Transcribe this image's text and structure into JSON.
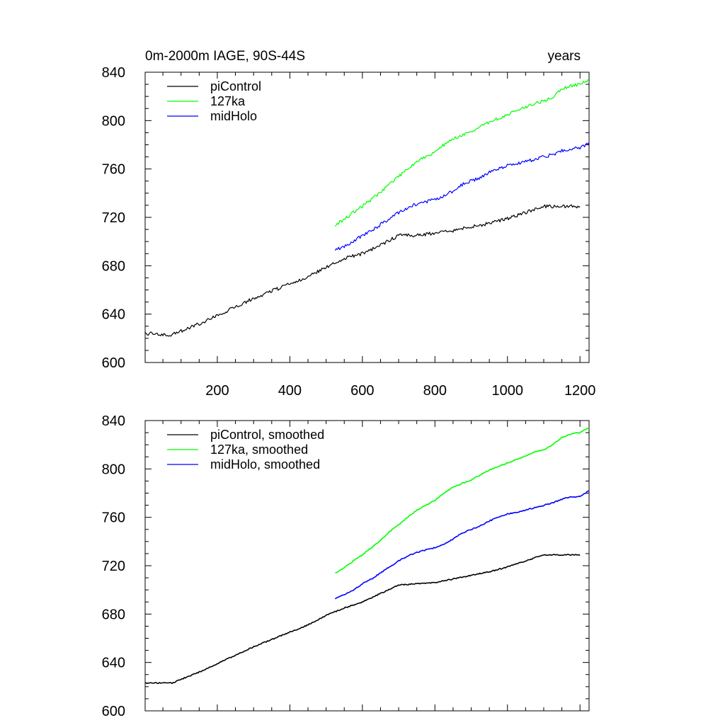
{
  "chart_data": [
    {
      "type": "line",
      "title": "0m-2000m IAGE, 90S-44S",
      "title_right": "years",
      "xlim": [
        1,
        1225
      ],
      "ylim": [
        600,
        840
      ],
      "yticks": [
        "600",
        "640",
        "680",
        "720",
        "760",
        "800",
        "840"
      ],
      "xticks": [
        "200",
        "400",
        "600",
        "800",
        "1000",
        "1200"
      ],
      "legend_position": "top-left",
      "series": [
        {
          "name": "piControl",
          "color": "#000000",
          "x": [
            1,
            25,
            50,
            75,
            100,
            150,
            200,
            250,
            300,
            350,
            400,
            450,
            500,
            525,
            550,
            600,
            650,
            700,
            750,
            800,
            850,
            900,
            950,
            1000,
            1050,
            1100,
            1150,
            1200
          ],
          "y": [
            624,
            624,
            623,
            623,
            626,
            632,
            639,
            646,
            653,
            659,
            665,
            671,
            679,
            682,
            686,
            690,
            697,
            705,
            705,
            707,
            709,
            712,
            715,
            719,
            724,
            729,
            729,
            729
          ]
        },
        {
          "name": "127ka",
          "color": "#00ff00",
          "x": [
            525,
            550,
            575,
            600,
            625,
            650,
            675,
            700,
            725,
            750,
            775,
            800,
            825,
            850,
            875,
            900,
            925,
            950,
            975,
            1000,
            1025,
            1050,
            1075,
            1100,
            1125,
            1150,
            1175,
            1200,
            1225
          ],
          "y": [
            714,
            718,
            724,
            729,
            735,
            741,
            748,
            754,
            760,
            766,
            770,
            774,
            780,
            785,
            788,
            791,
            795,
            799,
            802,
            805,
            808,
            811,
            814,
            816,
            820,
            826,
            829,
            830,
            834
          ]
        },
        {
          "name": "midHolo",
          "color": "#0000ff",
          "x": [
            525,
            550,
            575,
            600,
            625,
            650,
            675,
            700,
            725,
            750,
            775,
            800,
            825,
            850,
            875,
            900,
            925,
            950,
            975,
            1000,
            1025,
            1050,
            1075,
            1100,
            1125,
            1150,
            1175,
            1200,
            1225
          ],
          "y": [
            693,
            696,
            700,
            705,
            709,
            714,
            719,
            724,
            728,
            731,
            733,
            735,
            738,
            742,
            747,
            750,
            753,
            757,
            760,
            763,
            764,
            766,
            768,
            770,
            772,
            775,
            777,
            777,
            782
          ]
        }
      ]
    },
    {
      "type": "line",
      "title": "",
      "xlim": [
        1,
        1225
      ],
      "ylim": [
        600,
        840
      ],
      "yticks": [
        "600",
        "640",
        "680",
        "720",
        "760",
        "800",
        "840"
      ],
      "xticks": [],
      "legend_position": "top-left",
      "series": [
        {
          "name": "piControl, smoothed",
          "color": "#000000",
          "x": [
            1,
            25,
            50,
            75,
            100,
            150,
            200,
            250,
            300,
            350,
            400,
            450,
            500,
            525,
            550,
            600,
            650,
            700,
            750,
            800,
            850,
            900,
            950,
            1000,
            1050,
            1100,
            1150,
            1200
          ],
          "y": [
            623,
            623,
            623,
            623,
            626,
            632,
            639,
            646,
            653,
            659,
            665,
            671,
            679,
            682,
            685,
            690,
            697,
            704,
            705,
            706,
            709,
            712,
            715,
            719,
            724,
            729,
            729,
            729
          ]
        },
        {
          "name": "127ka, smoothed",
          "color": "#00ff00",
          "x": [
            525,
            550,
            575,
            600,
            625,
            650,
            675,
            700,
            725,
            750,
            775,
            800,
            825,
            850,
            875,
            900,
            925,
            950,
            975,
            1000,
            1025,
            1050,
            1075,
            1100,
            1125,
            1150,
            1175,
            1200,
            1225
          ],
          "y": [
            714,
            718,
            724,
            729,
            735,
            741,
            748,
            754,
            760,
            766,
            770,
            774,
            780,
            785,
            788,
            791,
            795,
            799,
            802,
            805,
            808,
            811,
            814,
            816,
            820,
            826,
            829,
            830,
            834
          ]
        },
        {
          "name": "midHolo, smoothed",
          "color": "#0000ff",
          "x": [
            525,
            550,
            575,
            600,
            625,
            650,
            675,
            700,
            725,
            750,
            775,
            800,
            825,
            850,
            875,
            900,
            925,
            950,
            975,
            1000,
            1025,
            1050,
            1075,
            1100,
            1125,
            1150,
            1175,
            1200,
            1225
          ],
          "y": [
            693,
            696,
            700,
            705,
            709,
            714,
            719,
            724,
            728,
            731,
            733,
            735,
            738,
            742,
            747,
            750,
            753,
            757,
            760,
            763,
            764,
            766,
            768,
            770,
            772,
            775,
            777,
            777,
            782
          ]
        }
      ]
    }
  ]
}
